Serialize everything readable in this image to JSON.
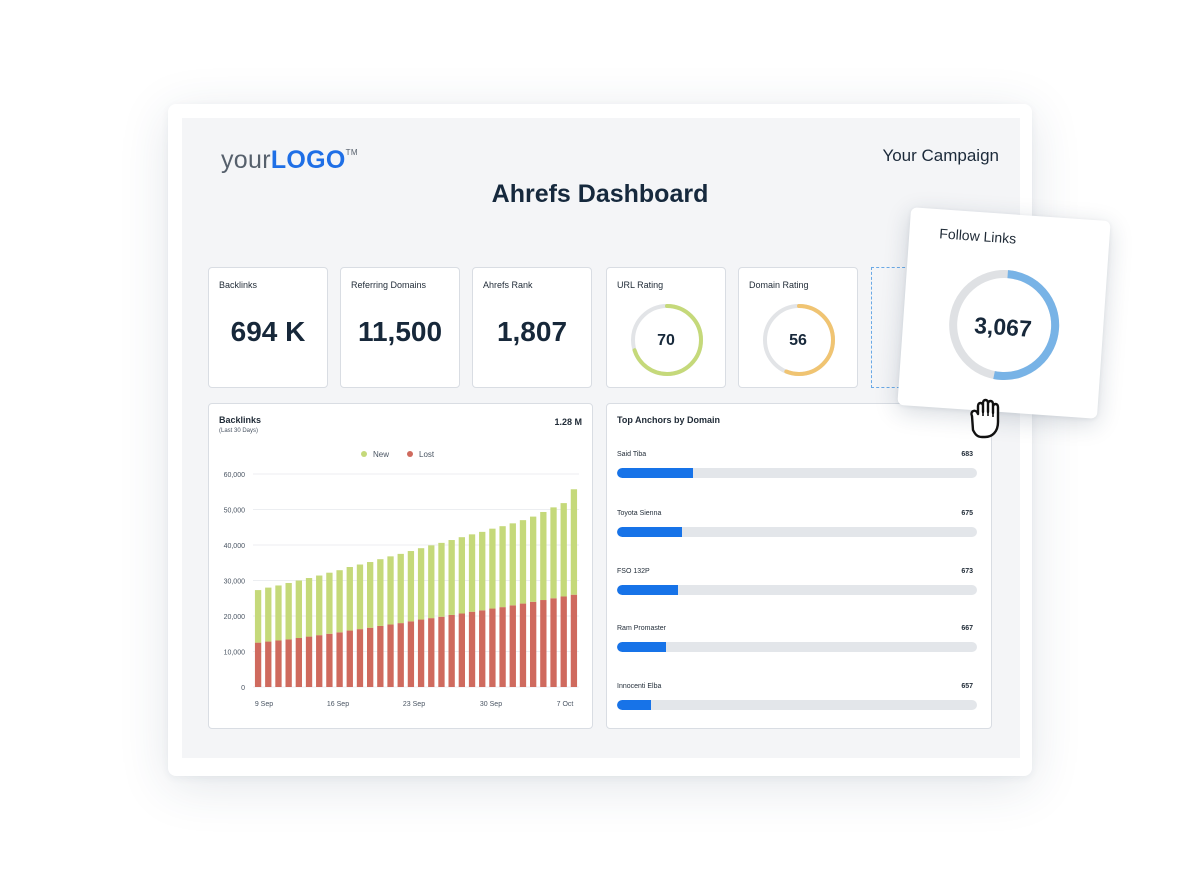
{
  "header": {
    "logo_your": "your",
    "logo_brand": "LOGO",
    "logo_tm": "TM",
    "campaign": "Your Campaign",
    "title": "Ahrefs Dashboard"
  },
  "kpis": [
    {
      "label": "Backlinks",
      "value": "694 K"
    },
    {
      "label": "Referring Domains",
      "value": "11,500"
    },
    {
      "label": "Ahrefs Rank",
      "value": "1,807"
    }
  ],
  "gauges": [
    {
      "label": "URL Rating",
      "value": "70",
      "fraction": 0.7,
      "color": "#c5d97a"
    },
    {
      "label": "Domain Rating",
      "value": "56",
      "fraction": 0.56,
      "color": "#f0c472"
    }
  ],
  "follow_links": {
    "label": "Follow Links",
    "value": "3,067",
    "fraction": 0.52,
    "color": "#78b3e6"
  },
  "backlinks_chart": {
    "title": "Backlinks",
    "subtitle": "(Last 30 Days)",
    "total": "1.28 M",
    "legend": [
      {
        "name": "New",
        "color": "#c5d97a"
      },
      {
        "name": "Lost",
        "color": "#cf6a5e"
      }
    ],
    "y_ticks": [
      "60,000",
      "50,000",
      "40,000",
      "30,000",
      "20,000",
      "10,000",
      "0"
    ],
    "x_ticks": [
      "9 Sep",
      "16 Sep",
      "23 Sep",
      "30 Sep",
      "7 Oct"
    ]
  },
  "chart_data": {
    "type": "bar",
    "stacked": true,
    "ylim": [
      0,
      60000
    ],
    "grid": true,
    "legend_position": "top-center",
    "series": [
      {
        "name": "Lost",
        "color": "#cf6a5e",
        "values": [
          12500,
          12800,
          13100,
          13400,
          13800,
          14200,
          14600,
          15000,
          15400,
          15900,
          16300,
          16700,
          17200,
          17600,
          18000,
          18500,
          19000,
          19400,
          19800,
          20300,
          20700,
          21200,
          21600,
          22100,
          22500,
          23000,
          23500,
          24000,
          24500,
          25000,
          25500,
          26000
        ]
      },
      {
        "name": "New",
        "color": "#c5d97a",
        "values": [
          14800,
          15200,
          15500,
          15900,
          16200,
          16500,
          16800,
          17200,
          17500,
          17900,
          18200,
          18500,
          18800,
          19200,
          19500,
          19800,
          20100,
          20500,
          20800,
          21100,
          21500,
          21800,
          22100,
          22500,
          22800,
          23100,
          23500,
          24000,
          24800,
          25600,
          26300,
          29700
        ]
      }
    ]
  },
  "anchors": {
    "title": "Top Anchors by Domain",
    "items": [
      {
        "label": "Said Tiba",
        "value": "683",
        "fraction": 0.21
      },
      {
        "label": "Toyota Sienna",
        "value": "675",
        "fraction": 0.18
      },
      {
        "label": "FSO 132P",
        "value": "673",
        "fraction": 0.17
      },
      {
        "label": "Ram Promaster",
        "value": "667",
        "fraction": 0.135
      },
      {
        "label": "Innocenti Elba",
        "value": "657",
        "fraction": 0.095
      }
    ]
  }
}
